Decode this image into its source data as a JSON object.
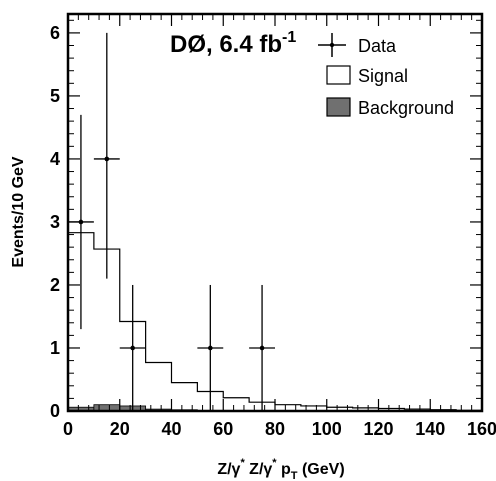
{
  "chart_data": {
    "type": "histogram",
    "experiment_label": {
      "main": "DØ, 6.4 fb",
      "superscript": "-1"
    },
    "xlabel": {
      "parts": [
        "Z/γ",
        "*",
        " Z/γ",
        "*",
        " p",
        "T",
        " (GeV)"
      ]
    },
    "ylabel": "Events/10 GeV",
    "xlim": [
      0,
      160
    ],
    "ylim": [
      0,
      6.3
    ],
    "x_ticks": [
      "0",
      "20",
      "40",
      "60",
      "80",
      "100",
      "120",
      "140",
      "160"
    ],
    "y_ticks": [
      "0",
      "1",
      "2",
      "3",
      "4",
      "5",
      "6"
    ],
    "bin_edges": [
      0,
      10,
      20,
      30,
      40,
      50,
      60,
      70,
      80,
      90,
      100,
      110,
      120,
      130,
      140,
      150,
      160
    ],
    "signal": {
      "name": "Signal",
      "values": [
        2.83,
        2.57,
        1.42,
        0.77,
        0.45,
        0.31,
        0.21,
        0.14,
        0.1,
        0.08,
        0.06,
        0.05,
        0.04,
        0.03,
        0.02,
        0.01
      ]
    },
    "background": {
      "name": "Background",
      "color": "#707070",
      "values": [
        0.06,
        0.1,
        0.08,
        0.03,
        0.02,
        0.01,
        0.01,
        0.0,
        0.0,
        0.0,
        0.0,
        0.0,
        0.0,
        0.0,
        0.0,
        0.0
      ]
    },
    "data": {
      "name": "Data",
      "points": [
        {
          "x": 5,
          "y": 3,
          "y_low": 1.3,
          "y_high": 4.7
        },
        {
          "x": 15,
          "y": 4,
          "y_low": 2.1,
          "y_high": 6.0
        },
        {
          "x": 25,
          "y": 1,
          "y_low": 0.0,
          "y_high": 2.0
        },
        {
          "x": 55,
          "y": 1,
          "y_low": 0.0,
          "y_high": 2.0
        },
        {
          "x": 75,
          "y": 1,
          "y_low": 0.0,
          "y_high": 2.0
        }
      ]
    },
    "legend_position": "top-right",
    "grid": false
  }
}
